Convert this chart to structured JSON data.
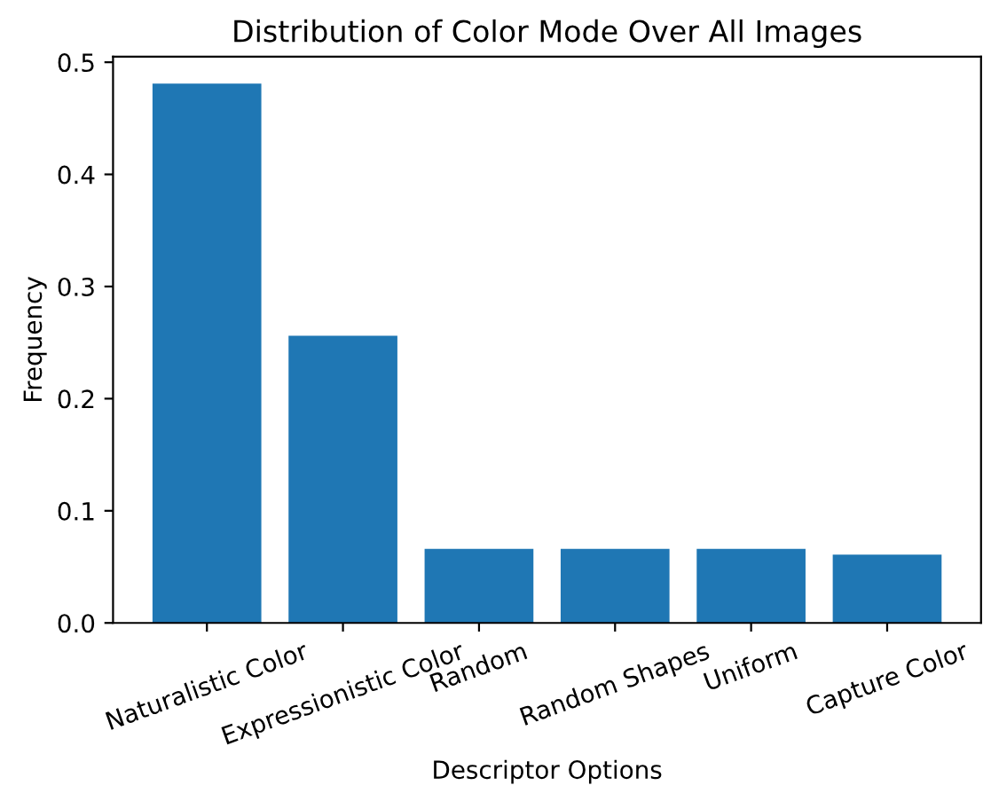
{
  "chart_data": {
    "type": "bar",
    "title": "Distribution of Color Mode Over All Images",
    "xlabel": "Descriptor Options",
    "ylabel": "Frequency",
    "categories": [
      "Naturalistic Color",
      "Expressionistic Color",
      "Random",
      "Random Shapes",
      "Uniform",
      "Capture Color"
    ],
    "values": [
      0.481,
      0.256,
      0.066,
      0.066,
      0.066,
      0.061
    ],
    "color": "#1f77b4",
    "ylim": [
      0,
      0.505
    ],
    "yticks": [
      {
        "value": 0,
        "label": "0.0"
      },
      0.1,
      0.2,
      0.3,
      0.4,
      0.5
    ],
    "grid": false
  }
}
